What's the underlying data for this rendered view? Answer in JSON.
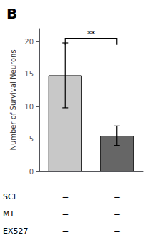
{
  "chart_data": {
    "type": "bar",
    "title": "B",
    "ylabel": "Number of Survival Neurons",
    "categories": [
      null,
      null
    ],
    "values": [
      14.8,
      5.5
    ],
    "errors": [
      5.0,
      1.5
    ],
    "colors": [
      "#c8c8c8",
      "#666666"
    ],
    "ylim": [
      0,
      22
    ],
    "yticks": [
      0,
      5,
      10,
      15,
      20
    ],
    "grid": false,
    "significance": {
      "label": "**",
      "y_top": 20.5,
      "y_bottom": 19.5
    },
    "condition_rows": [
      {
        "label": "SCI",
        "col1": "−",
        "col2": "−"
      },
      {
        "label": "MT",
        "col1": "−",
        "col2": "−"
      },
      {
        "label": "EX527",
        "col1": "−",
        "col2": "−"
      }
    ]
  }
}
